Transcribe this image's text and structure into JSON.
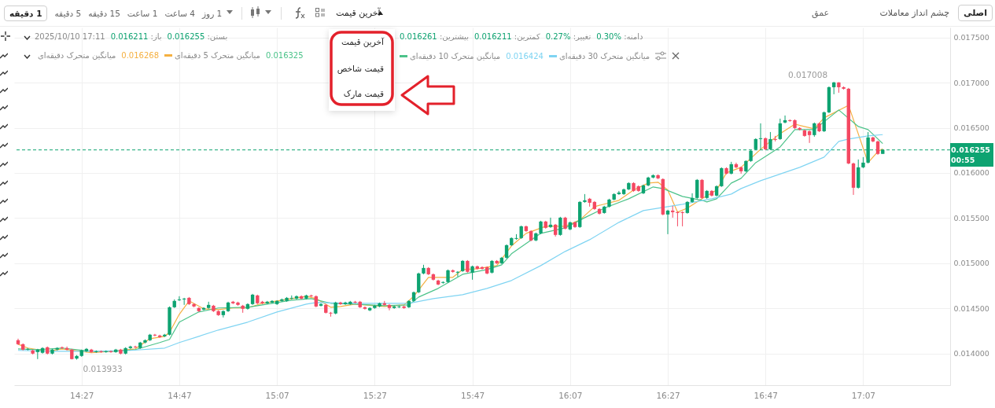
{
  "chart_data": {
    "type": "candlestick",
    "x": [
      "2025-10-10T14:14",
      "2025-10-10T14:15",
      "2025-10-10T14:16",
      "2025-10-10T14:17",
      "2025-10-10T14:18",
      "2025-10-10T14:19",
      "2025-10-10T14:20",
      "2025-10-10T14:21",
      "2025-10-10T14:22",
      "2025-10-10T14:23",
      "2025-10-10T14:24",
      "2025-10-10T14:25",
      "2025-10-10T14:26",
      "2025-10-10T14:27",
      "2025-10-10T14:28",
      "2025-10-10T14:29",
      "2025-10-10T14:30",
      "2025-10-10T14:31",
      "2025-10-10T14:32",
      "2025-10-10T14:33",
      "2025-10-10T14:34",
      "2025-10-10T14:35",
      "2025-10-10T14:36",
      "2025-10-10T14:37",
      "2025-10-10T14:38",
      "2025-10-10T14:39",
      "2025-10-10T14:40",
      "2025-10-10T14:41",
      "2025-10-10T14:42",
      "2025-10-10T14:43",
      "2025-10-10T14:44",
      "2025-10-10T14:45",
      "2025-10-10T14:46",
      "2025-10-10T14:47",
      "2025-10-10T14:48",
      "2025-10-10T14:49",
      "2025-10-10T14:50",
      "2025-10-10T14:51",
      "2025-10-10T14:52",
      "2025-10-10T14:53",
      "2025-10-10T14:54",
      "2025-10-10T14:55",
      "2025-10-10T14:56",
      "2025-10-10T14:57",
      "2025-10-10T14:58",
      "2025-10-10T14:59",
      "2025-10-10T15:00",
      "2025-10-10T15:01",
      "2025-10-10T15:02",
      "2025-10-10T15:03",
      "2025-10-10T15:04",
      "2025-10-10T15:05",
      "2025-10-10T15:06",
      "2025-10-10T15:07",
      "2025-10-10T15:08",
      "2025-10-10T15:09",
      "2025-10-10T15:10",
      "2025-10-10T15:11",
      "2025-10-10T15:12",
      "2025-10-10T15:13",
      "2025-10-10T15:14",
      "2025-10-10T15:15",
      "2025-10-10T15:16",
      "2025-10-10T15:17",
      "2025-10-10T15:18",
      "2025-10-10T15:19",
      "2025-10-10T15:20",
      "2025-10-10T15:21",
      "2025-10-10T15:22",
      "2025-10-10T15:23",
      "2025-10-10T15:24",
      "2025-10-10T15:25",
      "2025-10-10T15:26",
      "2025-10-10T15:27",
      "2025-10-10T15:28",
      "2025-10-10T15:29",
      "2025-10-10T15:30",
      "2025-10-10T15:31",
      "2025-10-10T15:32",
      "2025-10-10T15:33",
      "2025-10-10T15:34",
      "2025-10-10T15:35",
      "2025-10-10T15:36",
      "2025-10-10T15:37",
      "2025-10-10T15:38",
      "2025-10-10T15:39",
      "2025-10-10T15:40",
      "2025-10-10T15:41",
      "2025-10-10T15:42",
      "2025-10-10T15:43",
      "2025-10-10T15:44",
      "2025-10-10T15:45",
      "2025-10-10T15:46",
      "2025-10-10T15:47",
      "2025-10-10T15:48",
      "2025-10-10T15:49",
      "2025-10-10T15:50",
      "2025-10-10T15:51",
      "2025-10-10T15:52",
      "2025-10-10T15:53",
      "2025-10-10T15:54",
      "2025-10-10T15:55",
      "2025-10-10T15:56",
      "2025-10-10T15:57",
      "2025-10-10T15:58",
      "2025-10-10T15:59",
      "2025-10-10T16:00",
      "2025-10-10T16:01",
      "2025-10-10T16:02",
      "2025-10-10T16:03",
      "2025-10-10T16:04",
      "2025-10-10T16:05",
      "2025-10-10T16:06",
      "2025-10-10T16:07",
      "2025-10-10T16:08",
      "2025-10-10T16:09",
      "2025-10-10T16:10",
      "2025-10-10T16:11",
      "2025-10-10T16:12",
      "2025-10-10T16:13",
      "2025-10-10T16:14",
      "2025-10-10T16:15",
      "2025-10-10T16:16",
      "2025-10-10T16:17",
      "2025-10-10T16:18",
      "2025-10-10T16:19",
      "2025-10-10T16:20",
      "2025-10-10T16:21",
      "2025-10-10T16:22",
      "2025-10-10T16:23",
      "2025-10-10T16:24",
      "2025-10-10T16:25",
      "2025-10-10T16:26",
      "2025-10-10T16:27",
      "2025-10-10T16:28",
      "2025-10-10T16:29",
      "2025-10-10T16:30",
      "2025-10-10T16:31",
      "2025-10-10T16:32",
      "2025-10-10T16:33",
      "2025-10-10T16:34",
      "2025-10-10T16:35",
      "2025-10-10T16:36",
      "2025-10-10T16:37",
      "2025-10-10T16:38",
      "2025-10-10T16:39",
      "2025-10-10T16:40",
      "2025-10-10T16:41",
      "2025-10-10T16:42",
      "2025-10-10T16:43",
      "2025-10-10T16:44",
      "2025-10-10T16:45",
      "2025-10-10T16:46",
      "2025-10-10T16:47",
      "2025-10-10T16:48",
      "2025-10-10T16:49",
      "2025-10-10T16:50",
      "2025-10-10T16:51",
      "2025-10-10T16:52",
      "2025-10-10T16:53",
      "2025-10-10T16:54",
      "2025-10-10T16:55",
      "2025-10-10T16:56",
      "2025-10-10T16:57",
      "2025-10-10T16:58",
      "2025-10-10T16:59",
      "2025-10-10T17:00",
      "2025-10-10T17:01",
      "2025-10-10T17:02",
      "2025-10-10T17:03",
      "2025-10-10T17:04",
      "2025-10-10T17:05",
      "2025-10-10T17:06",
      "2025-10-10T17:07",
      "2025-10-10T17:08",
      "2025-10-10T17:09",
      "2025-10-10T17:10",
      "2025-10-10T17:11"
    ],
    "ohlc": [
      [
        0.014148,
        0.014165,
        0.014096,
        0.014104
      ],
      [
        0.014104,
        0.014113,
        0.014035,
        0.014044
      ],
      [
        0.014044,
        0.014061,
        0.014035,
        0.014052
      ],
      [
        0.014035,
        0.014044,
        0.013991,
        0.014
      ],
      [
        0.014017,
        0.014052,
        0.013939,
        0.014044
      ],
      [
        0.014009,
        0.01407,
        0.014,
        0.014061
      ],
      [
        0.01407,
        0.014078,
        0.013991,
        0.014
      ],
      [
        0.014,
        0.014052,
        0.013991,
        0.014044
      ],
      [
        0.014044,
        0.01407,
        0.014035,
        0.014061
      ],
      [
        0.01407,
        0.014078,
        0.014052,
        0.014061
      ],
      [
        0.014061,
        0.014078,
        0.014035,
        0.014044
      ],
      [
        0.014044,
        0.014052,
        0.013935,
        0.013939
      ],
      [
        0.013945,
        0.013983,
        0.013933,
        0.013974
      ],
      [
        0.013974,
        0.014044,
        0.013965,
        0.014035
      ],
      [
        0.014026,
        0.014061,
        0.014017,
        0.014052
      ],
      [
        0.014044,
        0.014052,
        0.014009,
        0.014017
      ],
      [
        0.014017,
        0.014035,
        0.014009,
        0.014026
      ],
      [
        0.014026,
        0.014035,
        0.014009,
        0.014017
      ],
      [
        0.014017,
        0.014035,
        0.014009,
        0.014026
      ],
      [
        0.014026,
        0.014035,
        0.014009,
        0.014017
      ],
      [
        0.014017,
        0.014052,
        0.014009,
        0.014044
      ],
      [
        0.014044,
        0.014052,
        0.013991,
        0.014
      ],
      [
        0.014,
        0.01407,
        0.013991,
        0.014061
      ],
      [
        0.014061,
        0.014087,
        0.014052,
        0.014078
      ],
      [
        0.014078,
        0.014087,
        0.014061,
        0.01407
      ],
      [
        0.014061,
        0.01413,
        0.014052,
        0.014122
      ],
      [
        0.014122,
        0.014157,
        0.014113,
        0.014148
      ],
      [
        0.014148,
        0.014218,
        0.014139,
        0.014209
      ],
      [
        0.014209,
        0.014218,
        0.014191,
        0.0142
      ],
      [
        0.0142,
        0.014209,
        0.014174,
        0.014183
      ],
      [
        0.014191,
        0.014218,
        0.014183,
        0.014209
      ],
      [
        0.014209,
        0.014522,
        0.0142,
        0.014513
      ],
      [
        0.014513,
        0.0146,
        0.014505,
        0.014583
      ],
      [
        0.014591,
        0.014635,
        0.014583,
        0.0146
      ],
      [
        0.0146,
        0.014617,
        0.014539,
        0.014609
      ],
      [
        0.014617,
        0.014626,
        0.014539,
        0.014548
      ],
      [
        0.014548,
        0.014557,
        0.014513,
        0.014522
      ],
      [
        0.014505,
        0.014513,
        0.014461,
        0.01447
      ],
      [
        0.014487,
        0.014513,
        0.014479,
        0.014505
      ],
      [
        0.014505,
        0.014574,
        0.014496,
        0.014539
      ],
      [
        0.01453,
        0.014539,
        0.014461,
        0.01447
      ],
      [
        0.01447,
        0.014479,
        0.014418,
        0.014426
      ],
      [
        0.014426,
        0.014479,
        0.0144,
        0.01447
      ],
      [
        0.01447,
        0.014574,
        0.014461,
        0.014565
      ],
      [
        0.014574,
        0.014583,
        0.014548,
        0.014557
      ],
      [
        0.014565,
        0.014574,
        0.01453,
        0.014539
      ],
      [
        0.01453,
        0.014539,
        0.014452,
        0.014496
      ],
      [
        0.014496,
        0.014557,
        0.014487,
        0.014548
      ],
      [
        0.014548,
        0.014661,
        0.014539,
        0.014652
      ],
      [
        0.014644,
        0.014652,
        0.014548,
        0.014557
      ],
      [
        0.014574,
        0.014583,
        0.014548,
        0.014557
      ],
      [
        0.014557,
        0.014583,
        0.014548,
        0.014574
      ],
      [
        0.014565,
        0.014591,
        0.014557,
        0.014583
      ],
      [
        0.014548,
        0.014591,
        0.014539,
        0.014583
      ],
      [
        0.014583,
        0.014609,
        0.014574,
        0.0146
      ],
      [
        0.014583,
        0.014626,
        0.014574,
        0.014617
      ],
      [
        0.014609,
        0.014644,
        0.0146,
        0.014617
      ],
      [
        0.014609,
        0.014644,
        0.0146,
        0.014635
      ],
      [
        0.014635,
        0.014644,
        0.0146,
        0.014609
      ],
      [
        0.014609,
        0.014652,
        0.0146,
        0.014644
      ],
      [
        0.014644,
        0.014652,
        0.014626,
        0.014635
      ],
      [
        0.014635,
        0.014644,
        0.014513,
        0.014522
      ],
      [
        0.01453,
        0.014557,
        0.014522,
        0.014548
      ],
      [
        0.014539,
        0.014548,
        0.014444,
        0.014452
      ],
      [
        0.014452,
        0.014461,
        0.014409,
        0.014444
      ],
      [
        0.014444,
        0.014574,
        0.014435,
        0.014565
      ],
      [
        0.014565,
        0.014574,
        0.014539,
        0.014548
      ],
      [
        0.014548,
        0.014574,
        0.014539,
        0.014565
      ],
      [
        0.014548,
        0.014583,
        0.014539,
        0.014574
      ],
      [
        0.014574,
        0.014583,
        0.014557,
        0.014565
      ],
      [
        0.014574,
        0.014583,
        0.014505,
        0.014513
      ],
      [
        0.014513,
        0.014522,
        0.014487,
        0.014496
      ],
      [
        0.014479,
        0.014513,
        0.01447,
        0.014505
      ],
      [
        0.014505,
        0.014539,
        0.014496,
        0.01453
      ],
      [
        0.014522,
        0.014565,
        0.014513,
        0.014557
      ],
      [
        0.014557,
        0.014583,
        0.01453,
        0.014539
      ],
      [
        0.014539,
        0.014548,
        0.014479,
        0.014505
      ],
      [
        0.014505,
        0.01453,
        0.014496,
        0.014522
      ],
      [
        0.014513,
        0.01453,
        0.014505,
        0.014522
      ],
      [
        0.014522,
        0.01453,
        0.014496,
        0.014505
      ],
      [
        0.014513,
        0.014591,
        0.014505,
        0.014583
      ],
      [
        0.014583,
        0.014687,
        0.014574,
        0.014679
      ],
      [
        0.014679,
        0.014896,
        0.01467,
        0.014887
      ],
      [
        0.014887,
        0.014983,
        0.014878,
        0.014948
      ],
      [
        0.014948,
        0.014957,
        0.01487,
        0.014878
      ],
      [
        0.014878,
        0.014887,
        0.014809,
        0.014818
      ],
      [
        0.014809,
        0.014818,
        0.014757,
        0.014765
      ],
      [
        0.014783,
        0.0148,
        0.014774,
        0.014792
      ],
      [
        0.014792,
        0.014931,
        0.014783,
        0.014922
      ],
      [
        0.014922,
        0.014931,
        0.014896,
        0.014905
      ],
      [
        0.014896,
        0.014913,
        0.014852,
        0.014905
      ],
      [
        0.014913,
        0.015035,
        0.014905,
        0.015026
      ],
      [
        0.015026,
        0.015035,
        0.014896,
        0.014905
      ],
      [
        0.014896,
        0.014974,
        0.014818,
        0.014966
      ],
      [
        0.014966,
        0.014974,
        0.014931,
        0.014939
      ],
      [
        0.014957,
        0.014966,
        0.014931,
        0.014939
      ],
      [
        0.014957,
        0.014966,
        0.014878,
        0.014887
      ],
      [
        0.014896,
        0.015035,
        0.014887,
        0.015026
      ],
      [
        0.015026,
        0.015035,
        0.014992,
        0.015
      ],
      [
        0.015,
        0.01507,
        0.014992,
        0.015061
      ],
      [
        0.015061,
        0.015209,
        0.015052,
        0.0152
      ],
      [
        0.0152,
        0.015287,
        0.015192,
        0.015279
      ],
      [
        0.01527,
        0.015322,
        0.015261,
        0.015279
      ],
      [
        0.015279,
        0.015417,
        0.01527,
        0.015409
      ],
      [
        0.015409,
        0.015417,
        0.015348,
        0.015357
      ],
      [
        0.015357,
        0.015366,
        0.015244,
        0.015253
      ],
      [
        0.015253,
        0.01534,
        0.015244,
        0.015331
      ],
      [
        0.015331,
        0.01547,
        0.015322,
        0.015462
      ],
      [
        0.015462,
        0.01547,
        0.015383,
        0.015392
      ],
      [
        0.015401,
        0.015505,
        0.015392,
        0.015427
      ],
      [
        0.015427,
        0.015435,
        0.015296,
        0.015314
      ],
      [
        0.015314,
        0.015514,
        0.015305,
        0.015505
      ],
      [
        0.015505,
        0.015514,
        0.015375,
        0.015383
      ],
      [
        0.015375,
        0.015462,
        0.015366,
        0.015453
      ],
      [
        0.015453,
        0.015462,
        0.015392,
        0.015401
      ],
      [
        0.015401,
        0.015688,
        0.015392,
        0.015679
      ],
      [
        0.015679,
        0.015766,
        0.01567,
        0.015697
      ],
      [
        0.015714,
        0.015723,
        0.015627,
        0.01567
      ],
      [
        0.015679,
        0.015688,
        0.015592,
        0.015601
      ],
      [
        0.015601,
        0.01561,
        0.01554,
        0.015549
      ],
      [
        0.015557,
        0.015636,
        0.015549,
        0.015627
      ],
      [
        0.015627,
        0.015714,
        0.015618,
        0.015705
      ],
      [
        0.015705,
        0.015775,
        0.015697,
        0.015766
      ],
      [
        0.015766,
        0.015801,
        0.015757,
        0.015783
      ],
      [
        0.015766,
        0.015827,
        0.015757,
        0.015818
      ],
      [
        0.015818,
        0.015897,
        0.01581,
        0.015888
      ],
      [
        0.015888,
        0.015897,
        0.015792,
        0.015801
      ],
      [
        0.015853,
        0.015862,
        0.015792,
        0.015801
      ],
      [
        0.015775,
        0.015871,
        0.015766,
        0.015862
      ],
      [
        0.015862,
        0.015958,
        0.015853,
        0.015949
      ],
      [
        0.015949,
        0.015984,
        0.01594,
        0.015975
      ],
      [
        0.015975,
        0.015984,
        0.015932,
        0.01594
      ],
      [
        0.015932,
        0.01594,
        0.015531,
        0.01554
      ],
      [
        0.01554,
        0.015592,
        0.015322,
        0.015583
      ],
      [
        0.015583,
        0.015636,
        0.015505,
        0.015566
      ],
      [
        0.015566,
        0.015575,
        0.015409,
        0.015557
      ],
      [
        0.015566,
        0.015575,
        0.015409,
        0.015557
      ],
      [
        0.015557,
        0.015688,
        0.015549,
        0.015679
      ],
      [
        0.015679,
        0.015775,
        0.01567,
        0.015723
      ],
      [
        0.015723,
        0.015932,
        0.015714,
        0.015923
      ],
      [
        0.015923,
        0.015932,
        0.015714,
        0.015723
      ],
      [
        0.015723,
        0.01581,
        0.015714,
        0.015801
      ],
      [
        0.015801,
        0.01581,
        0.01574,
        0.015749
      ],
      [
        0.015749,
        0.015862,
        0.01574,
        0.015853
      ],
      [
        0.015853,
        0.016062,
        0.015845,
        0.016053
      ],
      [
        0.016053,
        0.016062,
        0.015984,
        0.015992
      ],
      [
        0.015992,
        0.016123,
        0.015984,
        0.016097
      ],
      [
        0.016097,
        0.016114,
        0.016053,
        0.016062
      ],
      [
        0.016062,
        0.016071,
        0.015992,
        0.016018
      ],
      [
        0.016018,
        0.01614,
        0.01601,
        0.016132
      ],
      [
        0.016132,
        0.016253,
        0.016123,
        0.016245
      ],
      [
        0.016262,
        0.016384,
        0.016253,
        0.016375
      ],
      [
        0.016375,
        0.016549,
        0.016262,
        0.016384
      ],
      [
        0.016384,
        0.016393,
        0.016253,
        0.016262
      ],
      [
        0.016262,
        0.016453,
        0.016253,
        0.016375
      ],
      [
        0.016375,
        0.01641,
        0.016349,
        0.016366
      ],
      [
        0.016375,
        0.016601,
        0.016366,
        0.016549
      ],
      [
        0.016558,
        0.016636,
        0.016549,
        0.016584
      ],
      [
        0.016584,
        0.016593,
        0.016567,
        0.016575
      ],
      [
        0.016584,
        0.016593,
        0.016488,
        0.016497
      ],
      [
        0.016497,
        0.016506,
        0.016471,
        0.01648
      ],
      [
        0.016471,
        0.01648,
        0.016401,
        0.01641
      ],
      [
        0.016462,
        0.016471,
        0.016332,
        0.016419
      ],
      [
        0.016419,
        0.016558,
        0.016401,
        0.016549
      ],
      [
        0.016549,
        0.016558,
        0.016453,
        0.016462
      ],
      [
        0.016462,
        0.01668,
        0.016453,
        0.016671
      ],
      [
        0.016671,
        0.016958,
        0.016662,
        0.016949
      ],
      [
        0.016949,
        0.017008,
        0.016871,
        0.017002
      ],
      [
        0.017002,
        0.017005,
        0.016888,
        0.016949
      ],
      [
        0.016949,
        0.016958,
        0.016923,
        0.016932
      ],
      [
        0.016932,
        0.016941,
        0.016097,
        0.016105
      ],
      [
        0.016105,
        0.016114,
        0.015757,
        0.015836
      ],
      [
        0.015836,
        0.016149,
        0.015827,
        0.016062
      ],
      [
        0.016062,
        0.016175,
        0.016053,
        0.016114
      ],
      [
        0.016114,
        0.016453,
        0.016105,
        0.016393
      ],
      [
        0.016393,
        0.016401,
        0.01634,
        0.016349
      ],
      [
        0.016349,
        0.016358,
        0.016201,
        0.016211
      ],
      [
        0.016211,
        0.016261,
        0.016211,
        0.016255
      ]
    ],
    "series": [
      {
        "type": "line",
        "name": "میانگین متحرک 5 دقیقه‌ای",
        "color": "#f5b041",
        "x": [
          "2025-10-10T14:14",
          "2025-10-10T14:16",
          "2025-10-10T14:20",
          "2025-10-10T14:23",
          "2025-10-10T14:28",
          "2025-10-10T14:29",
          "2025-10-10T14:33",
          "2025-10-10T14:38",
          "2025-10-10T14:41",
          "2025-10-10T14:44",
          "2025-10-10T14:45",
          "2025-10-10T14:47",
          "2025-10-10T14:49",
          "2025-10-10T14:52",
          "2025-10-10T14:55",
          "2025-10-10T14:58",
          "2025-10-10T15:01",
          "2025-10-10T15:04",
          "2025-10-10T15:07",
          "2025-10-10T15:13",
          "2025-10-10T15:15",
          "2025-10-10T15:18",
          "2025-10-10T15:20",
          "2025-10-10T15:23",
          "2025-10-10T15:29",
          "2025-10-10T15:33",
          "2025-10-10T15:35",
          "2025-10-10T15:38",
          "2025-10-10T15:40",
          "2025-10-10T15:43",
          "2025-10-10T15:45",
          "2025-10-10T15:48",
          "2025-10-10T15:52",
          "2025-10-10T15:55",
          "2025-10-10T15:58",
          "2025-10-10T16:02",
          "2025-10-10T16:06",
          "2025-10-10T16:09",
          "2025-10-10T16:12",
          "2025-10-10T16:17",
          "2025-10-10T16:20",
          "2025-10-10T16:23",
          "2025-10-10T16:25",
          "2025-10-10T16:27",
          "2025-10-10T16:29",
          "2025-10-10T16:31",
          "2025-10-10T16:34",
          "2025-10-10T16:37",
          "2025-10-10T16:39",
          "2025-10-10T16:42",
          "2025-10-10T16:46",
          "2025-10-10T16:50",
          "2025-10-10T16:53",
          "2025-10-10T16:57",
          "2025-10-10T16:59",
          "2025-10-10T17:04",
          "2025-10-10T17:08",
          "2025-10-10T17:10",
          "2025-10-10T17:11"
        ],
        "values": [
          0.014104,
          0.014061,
          0.014026,
          0.014052,
          0.014017,
          0.014009,
          0.014026,
          0.014052,
          0.014165,
          0.014191,
          0.014235,
          0.014435,
          0.014583,
          0.014496,
          0.014487,
          0.014505,
          0.014505,
          0.014557,
          0.014583,
          0.014635,
          0.014609,
          0.014513,
          0.014522,
          0.014548,
          0.014522,
          0.014539,
          0.014635,
          0.014844,
          0.014844,
          0.014844,
          0.014931,
          0.014939,
          0.014974,
          0.015192,
          0.015331,
          0.015409,
          0.015409,
          0.015479,
          0.015627,
          0.015697,
          0.01581,
          0.015888,
          0.015897,
          0.01581,
          0.015566,
          0.01561,
          0.015714,
          0.01581,
          0.016001,
          0.016062,
          0.016262,
          0.016436,
          0.01654,
          0.016488,
          0.01661,
          0.016749,
          0.016114,
          0.016236,
          0.016268
        ]
      },
      {
        "type": "line",
        "name": "میانگین متحرک 10 دقیقه‌ای",
        "color": "#4cc38a",
        "x": [
          "2025-10-10T14:14",
          "2025-10-10T14:18",
          "2025-10-10T14:23",
          "2025-10-10T14:29",
          "2025-10-10T14:34",
          "2025-10-10T14:38",
          "2025-10-10T14:43",
          "2025-10-10T14:45",
          "2025-10-10T14:47",
          "2025-10-10T14:51",
          "2025-10-10T14:55",
          "2025-10-10T15:01",
          "2025-10-10T15:05",
          "2025-10-10T15:10",
          "2025-10-10T15:14",
          "2025-10-10T15:18",
          "2025-10-10T15:23",
          "2025-10-10T15:29",
          "2025-10-10T15:34",
          "2025-10-10T15:36",
          "2025-10-10T15:40",
          "2025-10-10T15:45",
          "2025-10-10T15:50",
          "2025-10-10T15:53",
          "2025-10-10T15:55",
          "2025-10-10T16:01",
          "2025-10-10T16:06",
          "2025-10-10T16:10",
          "2025-10-10T16:14",
          "2025-10-10T16:19",
          "2025-10-10T16:24",
          "2025-10-10T16:26",
          "2025-10-10T16:30",
          "2025-10-10T16:34",
          "2025-10-10T16:35",
          "2025-10-10T16:37",
          "2025-10-10T16:40",
          "2025-10-10T16:42",
          "2025-10-10T16:45",
          "2025-10-10T16:50",
          "2025-10-10T16:53",
          "2025-10-10T16:57",
          "2025-10-10T17:00",
          "2025-10-10T17:02",
          "2025-10-10T17:06",
          "2025-10-10T17:08",
          "2025-10-10T17:11"
        ],
        "values": [
          0.014052,
          0.014044,
          0.014061,
          0.014026,
          0.014026,
          0.014044,
          0.014122,
          0.014157,
          0.014348,
          0.014461,
          0.014505,
          0.014513,
          0.014548,
          0.014591,
          0.014609,
          0.014557,
          0.014548,
          0.01453,
          0.014539,
          0.014626,
          0.014722,
          0.014878,
          0.014931,
          0.014983,
          0.015105,
          0.015331,
          0.015392,
          0.015505,
          0.01561,
          0.015714,
          0.015845,
          0.015827,
          0.01574,
          0.015697,
          0.015679,
          0.015714,
          0.015888,
          0.01594,
          0.016114,
          0.016288,
          0.01648,
          0.01648,
          0.01661,
          0.016697,
          0.016514,
          0.01648,
          0.016325
        ]
      },
      {
        "type": "line",
        "name": "میانگین متحرک 30 دقیقه‌ای",
        "color": "#7fd4f2",
        "x": [
          "2025-10-10T14:14",
          "2025-10-10T14:21",
          "2025-10-10T14:29",
          "2025-10-10T14:37",
          "2025-10-10T14:44",
          "2025-10-10T14:47",
          "2025-10-10T14:51",
          "2025-10-10T14:55",
          "2025-10-10T15:01",
          "2025-10-10T15:07",
          "2025-10-10T15:13",
          "2025-10-10T15:15",
          "2025-10-10T15:23",
          "2025-10-10T15:34",
          "2025-10-10T15:39",
          "2025-10-10T15:45",
          "2025-10-10T15:50",
          "2025-10-10T15:55",
          "2025-10-10T16:01",
          "2025-10-10T16:06",
          "2025-10-10T16:11",
          "2025-10-10T16:17",
          "2025-10-10T16:22",
          "2025-10-10T16:25",
          "2025-10-10T16:30",
          "2025-10-10T16:36",
          "2025-10-10T16:40",
          "2025-10-10T16:42",
          "2025-10-10T16:46",
          "2025-10-10T16:54",
          "2025-10-10T16:59",
          "2025-10-10T17:02",
          "2025-10-10T17:04",
          "2025-10-10T17:08",
          "2025-10-10T17:11"
        ],
        "values": [
          0.014035,
          0.014026,
          0.014026,
          0.014035,
          0.014061,
          0.014122,
          0.014191,
          0.014261,
          0.014348,
          0.014461,
          0.014548,
          0.014565,
          0.014557,
          0.014557,
          0.014609,
          0.014652,
          0.014722,
          0.014809,
          0.014974,
          0.015131,
          0.015261,
          0.015453,
          0.015583,
          0.01561,
          0.015653,
          0.015714,
          0.015766,
          0.015827,
          0.015914,
          0.016062,
          0.016175,
          0.016349,
          0.016375,
          0.01641,
          0.016424
        ]
      }
    ],
    "xlim": [
      "2025-10-10T14:14",
      "2025-10-10T17:24"
    ],
    "xticks": [
      {
        "value": "2025-10-10T14:27",
        "label": "14:27"
      },
      {
        "value": "2025-10-10T14:47",
        "label": "14:47"
      },
      {
        "value": "2025-10-10T15:07",
        "label": "15:07"
      },
      {
        "value": "2025-10-10T15:27",
        "label": "15:27"
      },
      {
        "value": "2025-10-10T15:47",
        "label": "15:47"
      },
      {
        "value": "2025-10-10T16:07",
        "label": "16:07"
      },
      {
        "value": "2025-10-10T16:27",
        "label": "16:27"
      },
      {
        "value": "2025-10-10T16:47",
        "label": "16:47"
      },
      {
        "value": "2025-10-10T17:07",
        "label": "17:07"
      }
    ],
    "ylim": [
      0.01365,
      0.01761
    ],
    "yticks": [
      {
        "value": 0.014,
        "label": "0.014000"
      },
      {
        "value": 0.0145,
        "label": "0.014500"
      },
      {
        "value": 0.015,
        "label": "0.015000"
      },
      {
        "value": 0.0155,
        "label": "0.015500"
      },
      {
        "value": 0.016,
        "label": "0.016000"
      },
      {
        "value": 0.0165,
        "label": "0.016500"
      },
      {
        "value": 0.017,
        "label": "0.017000"
      },
      {
        "value": 0.0175,
        "label": "0.017500"
      }
    ],
    "grid": true,
    "legend": "top",
    "ref_lines": [
      {
        "axis": "y",
        "value": 0.016255,
        "label": "0.016255",
        "color": "#0ea371",
        "line_style": "dashed"
      }
    ],
    "annotations": [
      "1 دقیقه",
      "5 دقیقه",
      "15 دقیقه",
      "1 ساعت",
      "4 ساعت",
      "1 روز",
      "آخرین قیمت",
      "آخرین قیمت",
      "قیمت شاخص",
      "قیمت مارک",
      "اصلی",
      "چشم انداز معاملات",
      "عمق",
      "2025/10/10 17:11",
      "باز: 0.016211",
      "بستن: 0.016255",
      "بیشترین: 0.016261",
      "کمترین: 0.016211",
      "تغییر: 0.27%",
      "دامنه: 0.30%",
      "میانگین متحرک دقیقه‌ای",
      "00:55",
      "0.016268",
      "0.016325",
      "0.016424",
      {
        "text": "0.017008",
        "x": "2025-10-10T17:01",
        "y": 0.017008
      },
      {
        "text": "0.013933",
        "x": "2025-10-10T14:26",
        "y": 0.013933
      }
    ]
  }
}
